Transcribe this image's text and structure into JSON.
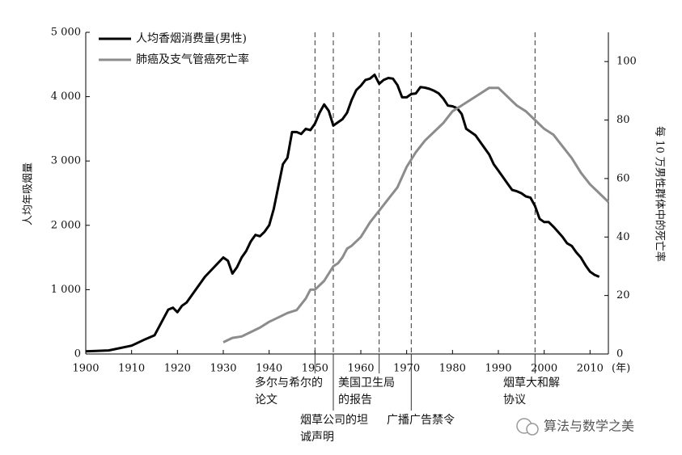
{
  "chart_data": {
    "type": "line",
    "y_label": "人均年吸烟量",
    "y2_label": "每 10 万男性群体中的死亡率",
    "x_unit_label": "(年)",
    "xlim": [
      1900,
      2014
    ],
    "xticks": [
      1900,
      1910,
      1920,
      1930,
      1940,
      1950,
      1960,
      1970,
      1980,
      1990,
      2000,
      2010
    ],
    "ylim": [
      0,
      5000
    ],
    "yticks": [
      0,
      {
        "value": 1000,
        "label": "1 000"
      },
      {
        "value": 2000,
        "label": "2 000"
      },
      {
        "value": 3000,
        "label": "3 000"
      },
      {
        "value": 4000,
        "label": "4 000"
      },
      {
        "value": 5000,
        "label": "5 000"
      }
    ],
    "y2lim": [
      0,
      110
    ],
    "y2ticks": [
      0,
      20,
      40,
      60,
      80,
      100
    ],
    "legend": "upper left",
    "series": [
      {
        "name": "人均香烟消费量(男性)",
        "color": "#000000",
        "x": [
          1900,
          1905,
          1910,
          1913,
          1915,
          1918,
          1919,
          1920,
          1921,
          1922,
          1924,
          1926,
          1928,
          1930,
          1931,
          1932,
          1933,
          1934,
          1935,
          1936,
          1937,
          1938,
          1939,
          1940,
          1941,
          1942,
          1943,
          1944,
          1945,
          1946,
          1947,
          1948,
          1949,
          1950,
          1951,
          1952,
          1953,
          1954,
          1955,
          1956,
          1957,
          1958,
          1959,
          1960,
          1961,
          1962,
          1963,
          1964,
          1965,
          1966,
          1967,
          1968,
          1969,
          1970,
          1971,
          1972,
          1973,
          1974,
          1975,
          1976,
          1977,
          1978,
          1979,
          1980,
          1981,
          1982,
          1983,
          1984,
          1985,
          1986,
          1987,
          1988,
          1989,
          1990,
          1991,
          1992,
          1993,
          1994,
          1995,
          1996,
          1997,
          1998,
          1999,
          2000,
          2001,
          2002,
          2003,
          2004,
          2005,
          2006,
          2007,
          2008,
          2009,
          2010,
          2011,
          2012
        ],
        "values": [
          40,
          55,
          130,
          230,
          290,
          690,
          720,
          650,
          750,
          800,
          1000,
          1200,
          1350,
          1500,
          1450,
          1250,
          1350,
          1500,
          1600,
          1750,
          1850,
          1830,
          1900,
          2000,
          2250,
          2600,
          2950,
          3050,
          3450,
          3450,
          3420,
          3500,
          3480,
          3580,
          3750,
          3880,
          3780,
          3550,
          3600,
          3650,
          3750,
          3950,
          4100,
          4170,
          4260,
          4280,
          4340,
          4200,
          4260,
          4290,
          4280,
          4180,
          3990,
          3990,
          4040,
          4050,
          4150,
          4140,
          4120,
          4090,
          4050,
          3970,
          3860,
          3850,
          3820,
          3730,
          3500,
          3450,
          3400,
          3300,
          3200,
          3100,
          2950,
          2850,
          2750,
          2650,
          2550,
          2530,
          2500,
          2450,
          2430,
          2300,
          2100,
          2050,
          2050,
          1980,
          1900,
          1820,
          1720,
          1680,
          1580,
          1500,
          1380,
          1280,
          1230,
          1200
        ]
      },
      {
        "name": "肺癌及支气管癌死亡率",
        "color": "#8c8c8c",
        "axis": "y2",
        "x": [
          1930,
          1932,
          1934,
          1936,
          1938,
          1940,
          1942,
          1944,
          1946,
          1948,
          1949,
          1950,
          1952,
          1954,
          1955,
          1956,
          1957,
          1958,
          1960,
          1962,
          1964,
          1966,
          1968,
          1970,
          1972,
          1974,
          1976,
          1978,
          1980,
          1982,
          1984,
          1986,
          1988,
          1990,
          1992,
          1994,
          1996,
          1998,
          2000,
          2002,
          2004,
          2006,
          2008,
          2010,
          2012,
          2014
        ],
        "values": [
          4,
          5.5,
          6,
          7.5,
          9,
          11,
          12.5,
          14,
          15,
          19,
          22,
          22,
          25,
          30,
          31,
          33,
          36,
          37,
          40,
          45,
          49,
          53,
          57,
          64,
          69,
          73,
          76,
          79,
          83,
          85,
          87,
          89,
          91,
          91,
          88,
          85,
          83,
          80,
          77,
          75,
          71,
          67,
          62,
          58,
          55,
          52
        ]
      }
    ],
    "annotations": [
      {
        "x": 1950,
        "lines": [
          "多尔与希尔的",
          "论文"
        ]
      },
      {
        "x": 1954,
        "lines": [
          "烟草公司的坦",
          "诚声明"
        ]
      },
      {
        "x": 1964,
        "lines": [
          "美国卫生局",
          "的报告"
        ]
      },
      {
        "x": 1971,
        "lines": [
          "广播广告禁令"
        ]
      },
      {
        "x": 1998,
        "lines": [
          "烟草大和解",
          "协议"
        ]
      }
    ],
    "watermark": "算法与数学之美"
  }
}
